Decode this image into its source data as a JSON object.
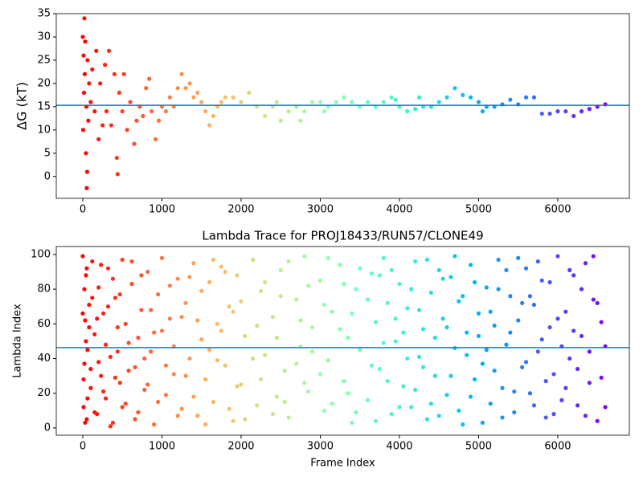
{
  "chart_data": [
    {
      "type": "scatter",
      "ylabel": "ΔG (kT)",
      "colormap": "rainbow_r",
      "hline": 15.3,
      "hline_color": "#1f77b4",
      "x": [
        0,
        5,
        10,
        15,
        20,
        25,
        30,
        40,
        45,
        50,
        55,
        60,
        70,
        80,
        100,
        120,
        150,
        170,
        200,
        220,
        250,
        280,
        300,
        330,
        360,
        400,
        430,
        440,
        460,
        500,
        520,
        560,
        600,
        650,
        680,
        720,
        760,
        800,
        840,
        870,
        920,
        960,
        1000,
        1050,
        1100,
        1150,
        1200,
        1250,
        1300,
        1350,
        1400,
        1450,
        1500,
        1550,
        1600,
        1650,
        1700,
        1750,
        1800,
        1900,
        2000,
        2100,
        2200,
        2300,
        2400,
        2450,
        2500,
        2600,
        2700,
        2750,
        2800,
        2900,
        3000,
        3050,
        3100,
        3200,
        3300,
        3400,
        3500,
        3600,
        3700,
        3800,
        3900,
        3950,
        4000,
        4100,
        4200,
        4250,
        4300,
        4400,
        4500,
        4600,
        4700,
        4800,
        4900,
        5000,
        5050,
        5100,
        5200,
        5300,
        5400,
        5500,
        5600,
        5700,
        5800,
        5900,
        6000,
        6100,
        6200,
        6300,
        6400,
        6500,
        6600
      ],
      "values": [
        30,
        10,
        26,
        18,
        34,
        22,
        29,
        5,
        15,
        -2.5,
        1,
        25,
        12,
        20,
        16,
        23,
        14,
        27,
        8,
        20,
        11,
        24,
        14,
        27,
        11,
        22,
        4,
        0.5,
        18,
        14,
        22,
        10,
        16,
        7,
        12,
        15,
        13,
        19,
        21,
        14,
        8,
        12,
        15,
        14,
        17,
        15,
        19,
        22,
        19,
        20,
        17,
        18,
        16,
        14,
        11,
        13,
        15,
        16,
        17,
        17,
        16,
        18,
        15,
        13,
        15,
        16,
        12,
        14,
        15,
        12,
        14,
        16,
        16,
        14,
        15,
        16,
        17,
        16,
        15,
        16,
        15,
        16,
        17,
        16.5,
        15,
        14,
        14.5,
        17,
        15,
        15,
        16,
        17,
        19,
        17.5,
        17,
        16,
        14,
        15,
        15,
        15.5,
        16.5,
        15.5,
        17,
        17,
        13.5,
        13.5,
        14,
        14,
        13,
        14,
        14.5,
        15,
        15.5
      ],
      "xlim": [
        -335,
        6904
      ],
      "ylim": [
        -4.7,
        35
      ],
      "xticks": [
        0,
        1000,
        2000,
        3000,
        4000,
        5000,
        6000
      ],
      "yticks": [
        0,
        5,
        10,
        15,
        20,
        25,
        30,
        35
      ]
    },
    {
      "type": "scatter",
      "title": "Lambda Trace for PROJ18433/RUN57/CLONE49",
      "xlabel": "Frame Index",
      "ylabel": "Lambda Index",
      "colormap": "rainbow_r",
      "hline": 46.3,
      "hline_color": "#1f77b4",
      "x": [
        0,
        10,
        20,
        30,
        40,
        50,
        60,
        80,
        100,
        120,
        150,
        180,
        200,
        230,
        260,
        290,
        320,
        350,
        380,
        410,
        440,
        470,
        500,
        540,
        580,
        620,
        660,
        700,
        740,
        780,
        820,
        860,
        900,
        950,
        1000,
        1050,
        1100,
        1150,
        1200,
        1250,
        1300,
        1350,
        1400,
        1450,
        1500,
        1550,
        1600,
        1650,
        1700,
        1750,
        1800,
        1850,
        1900,
        1950,
        2000,
        2050,
        2150,
        2200,
        2250,
        2300,
        2400,
        2450,
        2500,
        2550,
        2600,
        2700,
        2750,
        2800,
        2850,
        2900,
        3000,
        3050,
        3100,
        3150,
        3250,
        3300,
        3350,
        3400,
        3450,
        3500,
        3600,
        3650,
        3700,
        3750,
        3800,
        3850,
        3900,
        3950,
        4000,
        4050,
        4100,
        4150,
        4200,
        4250,
        4300,
        4350,
        4400,
        4450,
        4500,
        4550,
        4600,
        4650,
        4700,
        4750,
        4800,
        4850,
        4900,
        4950,
        5000,
        5050,
        5100,
        5150,
        5200,
        5250,
        5300,
        5350,
        5400,
        5450,
        5500,
        5550,
        5600,
        5650,
        5700,
        5750,
        5800,
        5850,
        5900,
        5950,
        6000,
        6050,
        6100,
        6150,
        6200,
        6250,
        6300,
        6350,
        6400,
        6450,
        6500,
        6550,
        6600,
        0,
        10,
        20,
        30,
        40,
        50,
        60,
        80,
        100,
        120,
        150,
        180,
        200,
        230,
        260,
        290,
        320,
        350,
        380,
        410,
        440,
        470,
        500,
        540,
        580,
        620,
        660,
        700,
        740,
        780,
        820,
        860,
        900,
        950,
        1000,
        1050,
        1100,
        1150,
        1200,
        1250,
        1300,
        1350,
        1400,
        1450,
        1500,
        1550,
        1600,
        1650,
        1700,
        1750,
        1800,
        1850,
        1900,
        1950,
        2000,
        2050,
        2150,
        2200,
        2250,
        2300,
        2400,
        2450,
        2500,
        2550,
        2600,
        2700,
        2750,
        2800,
        2850,
        2900,
        3000,
        3050,
        3100,
        3150,
        3250,
        3300,
        3350,
        3400,
        3450,
        3500,
        3600,
        3650,
        3700,
        3750,
        3800,
        3850,
        3900,
        3950,
        4000,
        4050,
        4100,
        4150,
        4200,
        4250,
        4300,
        4350,
        4400,
        4450,
        4500,
        4550,
        4600,
        4650,
        4700,
        4750,
        4800,
        4850,
        4900,
        4950,
        5000,
        5050,
        5100,
        5150,
        5200,
        5250,
        5300,
        5350,
        5400,
        5450,
        5500,
        5550,
        5600,
        5650,
        5700,
        5750,
        5800,
        5850,
        5900,
        5950,
        6000,
        6050,
        6100,
        6150,
        6200,
        6250,
        6300,
        6350,
        6400,
        6450,
        6500,
        6550,
        6600
      ],
      "values": [
        99,
        12,
        37,
        62,
        88,
        5,
        45,
        71,
        23,
        96,
        54,
        8,
        81,
        30,
        66,
        17,
        92,
        41,
        3,
        75,
        58,
        26,
        97,
        14,
        49,
        83,
        35,
        9,
        68,
        22,
        90,
        44,
        2,
        77,
        56,
        19,
        63,
        31,
        86,
        11,
        72,
        40,
        95,
        7,
        51,
        28,
        84,
        15,
        60,
        93,
        36,
        70,
        4,
        88,
        25,
        53,
        97,
        13,
        79,
        42,
        64,
        18,
        91,
        33,
        6,
        74,
        47,
        99,
        21,
        58,
        85,
        10,
        39,
        67,
        94,
        27,
        52,
        3,
        80,
        45,
        16,
        89,
        61,
        34,
        98,
        72,
        8,
        50,
        83,
        24,
        69,
        12,
        96,
        41,
        57,
        5,
        78,
        30,
        91,
        63,
        19,
        87,
        46,
        73,
        2,
        55,
        94,
        28,
        66,
        37,
        81,
        14,
        59,
        97,
        23,
        48,
        76,
        9,
        62,
        35,
        92,
        20,
        71,
        44,
        85,
        6,
        58,
        31,
        99,
        16,
        67,
        40,
        88,
        13,
        53,
        95,
        26,
        74,
        4,
        61,
        47,
        66,
        28,
        80,
        3,
        50,
        92,
        17,
        58,
        34,
        75,
        9,
        63,
        38,
        94,
        21,
        48,
        70,
        1,
        86,
        29,
        44,
        77,
        12,
        60,
        33,
        96,
        5,
        52,
        88,
        40,
        25,
        68,
        55,
        15,
        98,
        36,
        82,
        47,
        7,
        64,
        30,
        87,
        18,
        62,
        79,
        2,
        45,
        97,
        39,
        56,
        90,
        11,
        67,
        24,
        73,
        5,
        40,
        59,
        28,
        84,
        8,
        52,
        76,
        15,
        96,
        37,
        62,
        26,
        82,
        44,
        31,
        71,
        98,
        14,
        57,
        83,
        20,
        66,
        9,
        92,
        74,
        36,
        4,
        88,
        49,
        27,
        91,
        63,
        12,
        55,
        40,
        80,
        22,
        68,
        35,
        97,
        14,
        52,
        7,
        86,
        58,
        30,
        99,
        10,
        76,
        42,
        18,
        84,
        53,
        3,
        45,
        67,
        33,
        80,
        6,
        91,
        55,
        21,
        98,
        72,
        38,
        76,
        13,
        96,
        51,
        27,
        84,
        8,
        63,
        47,
        23,
        91,
        56,
        34,
        80,
        7,
        44,
        99,
        72,
        29,
        12
      ],
      "xlim": [
        -335,
        6904
      ],
      "ylim": [
        -4.2,
        104.6
      ],
      "xticks": [
        0,
        1000,
        2000,
        3000,
        4000,
        5000,
        6000
      ],
      "yticks": [
        0,
        20,
        40,
        60,
        80,
        100
      ]
    }
  ]
}
